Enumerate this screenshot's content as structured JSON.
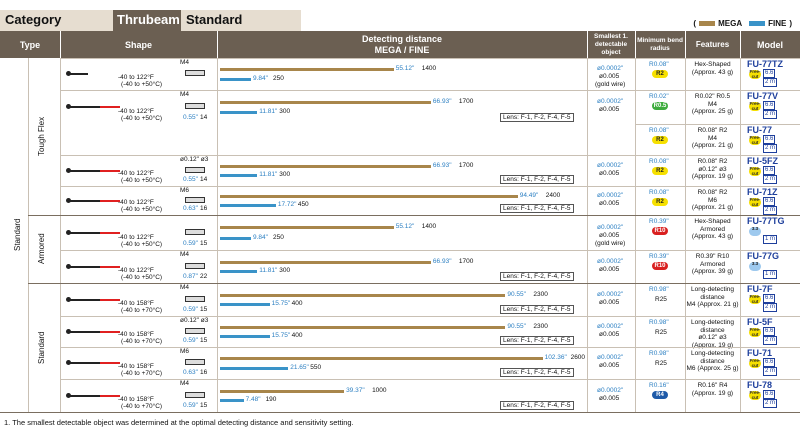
{
  "top": {
    "category": "Category",
    "thrubeam": "Thrubeam",
    "standard": "Standard"
  },
  "legend": {
    "mega": "MEGA",
    "fine": "FINE",
    "mega_color": "#a8864b",
    "fine_color": "#3a93c8",
    "open": "(",
    "close": ")"
  },
  "header": {
    "type": "Type",
    "shape": "Shape",
    "det1": "Detecting distance",
    "det2": "MEGA / FINE",
    "small": "Smallest 1. detectable object",
    "bend": "Minimum bend radius",
    "features": "Features",
    "model": "Model"
  },
  "groups": {
    "outer": "Standard",
    "toughflex": "Tough Flex",
    "armored": "Armored",
    "standard": "Standard"
  },
  "lens": "Lens: F-1, F-2, F-4, F-5",
  "rows": [
    {
      "temp1": "-40 to 122°F",
      "temp2": "(-40 to +50°C)",
      "thread": "M4",
      "dim": "",
      "dimv": "",
      "fine_in": "9.84\"",
      "fine_mm": "250",
      "mega_in": "55.12\"",
      "mega_mm": "1400",
      "small1": "ø0.0002\"",
      "small2": "ø0.005",
      "small3": "(gold wire)",
      "r_in": "R0.08\"",
      "r_mm": "R2",
      "pill": "R2",
      "feat": [
        "Hex-Shaped",
        "(Approx. 43 g)"
      ],
      "model": "FU-77TZ",
      "chip": "Free-cut",
      "len": "6.6",
      "len2": "2 m"
    },
    {
      "temp1": "-40 to 122°F",
      "temp2": "(-40 to +50°C)",
      "thread": "M4",
      "dim": "0.55\"",
      "dimv": "14",
      "fine_in": "11.81\"",
      "fine_mm": "300",
      "mega_in": "66.93\"",
      "mega_mm": "1700",
      "small1": "ø0.0002\"",
      "small2": "ø0.005",
      "small3": "",
      "r_in": "R0.02\"",
      "r_mm": "R0.5",
      "pill": "R0.5",
      "feat": [
        "R0.02\" R0.5",
        "M4",
        "(Approx. 25 g)"
      ],
      "model": "FU-77V",
      "chip": "Free-cut",
      "len": "6.6",
      "len2": "2 m"
    },
    {
      "temp1": "",
      "temp2": "",
      "thread": "",
      "dim": "",
      "dimv": "",
      "fine_in": "",
      "fine_mm": "",
      "mega_in": "",
      "mega_mm": "",
      "small1": "",
      "small2": "",
      "small3": "",
      "r_in": "R0.08\"",
      "r_mm": "R2",
      "pill": "R2",
      "feat": [
        "R0.08\" R2",
        "M4",
        "(Approx. 21 g)"
      ],
      "model": "FU-77",
      "chip": "Free-cut",
      "len": "6.6",
      "len2": "2 m"
    },
    {
      "temp1": "-40 to 122°F",
      "temp2": "(-40 to +50°C)",
      "thread": "ø0.12\" ø3",
      "dim": "0.55\"",
      "dimv": "14",
      "fine_in": "11.81\"",
      "fine_mm": "300",
      "mega_in": "66.93\"",
      "mega_mm": "1700",
      "small1": "ø0.0002\"",
      "small2": "ø0.005",
      "small3": "",
      "r_in": "R0.08\"",
      "r_mm": "R2",
      "pill": "R2",
      "feat": [
        "R0.08\" R2",
        "ø0.12\" ø3",
        "(Approx. 19 g)"
      ],
      "model": "FU-5FZ",
      "chip": "Free-cut",
      "len": "6.6",
      "len2": "2 m"
    },
    {
      "temp1": "-40 to 122°F",
      "temp2": "(-40 to +50°C)",
      "thread": "M6",
      "dim": "0.63\"",
      "dimv": "16",
      "fine_in": "17.72\"",
      "fine_mm": "450",
      "mega_in": "94.49\"",
      "mega_mm": "2400",
      "small1": "ø0.0002\"",
      "small2": "ø0.005",
      "small3": "",
      "r_in": "R0.08\"",
      "r_mm": "R2",
      "pill": "R2",
      "feat": [
        "R0.08\" R2",
        "M6",
        "(Approx. 21 g)"
      ],
      "model": "FU-71Z",
      "chip": "Free-cut",
      "len": "6.6",
      "len2": "2 m"
    },
    {
      "temp1": "-40 to 122°F",
      "temp2": "(-40 to +50°C)",
      "thread": "",
      "dim": "0.59\"",
      "dimv": "15",
      "fine_in": "9.84\"",
      "fine_mm": "250",
      "mega_in": "55.12\"",
      "mega_mm": "1400",
      "small1": "ø0.0002\"",
      "small2": "ø0.005",
      "small3": "(gold wire)",
      "r_in": "R0.39\"",
      "r_mm": "R10",
      "pill": "R10",
      "feat": [
        "Hex-Shaped",
        "Armored",
        "(Approx. 43 g)"
      ],
      "model": "FU-77TG",
      "chip": "3.3",
      "len": "",
      "len2": "1 m"
    },
    {
      "temp1": "-40 to 122°F",
      "temp2": "(-40 to +50°C)",
      "thread": "M4",
      "dim": "0.87\"",
      "dimv": "22",
      "fine_in": "11.81\"",
      "fine_mm": "300",
      "mega_in": "66.93\"",
      "mega_mm": "1700",
      "small1": "ø0.0002\"",
      "small2": "ø0.005",
      "small3": "",
      "r_in": "R0.39\"",
      "r_mm": "R10",
      "pill": "R10",
      "feat": [
        "R0.39\" R10",
        "Armored",
        "(Approx. 39 g)"
      ],
      "model": "FU-77G",
      "chip": "3.3",
      "len": "",
      "len2": "1 m"
    },
    {
      "temp1": "-40 to 158°F",
      "temp2": "(-40 to +70°C)",
      "thread": "M4",
      "dim": "0.59\"",
      "dimv": "15",
      "fine_in": "15.75\"",
      "fine_mm": "400",
      "mega_in": "90.55\"",
      "mega_mm": "2300",
      "small1": "ø0.0002\"",
      "small2": "ø0.005",
      "small3": "",
      "r_in": "R0.98\"",
      "r_mm": "R25",
      "pill": "",
      "feat": [
        "Long-detecting",
        "distance",
        "M4 (Approx. 21 g)"
      ],
      "model": "FU-7F",
      "chip": "Free-cut",
      "len": "6.6",
      "len2": "2 m"
    },
    {
      "temp1": "-40 to 158°F",
      "temp2": "(-40 to +70°C)",
      "thread": "ø0.12\" ø3",
      "dim": "0.59\"",
      "dimv": "15",
      "fine_in": "15.75\"",
      "fine_mm": "400",
      "mega_in": "90.55\"",
      "mega_mm": "2300",
      "small1": "ø0.0002\"",
      "small2": "ø0.005",
      "small3": "",
      "r_in": "R0.98\"",
      "r_mm": "R25",
      "pill": "",
      "feat": [
        "Long-detecting",
        "distance",
        "ø0.12\" ø3",
        "(Approx. 19 g)"
      ],
      "model": "FU-5F",
      "chip": "Free-cut",
      "len": "6.6",
      "len2": "2 m"
    },
    {
      "temp1": "-40 to 158°F",
      "temp2": "(-40 to +70°C)",
      "thread": "M6",
      "dim": "0.63\"",
      "dimv": "16",
      "fine_in": "21.65\"",
      "fine_mm": "550",
      "mega_in": "102.36\"",
      "mega_mm": "2600",
      "small1": "ø0.0002\"",
      "small2": "ø0.005",
      "small3": "",
      "r_in": "R0.98\"",
      "r_mm": "R25",
      "pill": "",
      "feat": [
        "Long-detecting",
        "distance",
        "M6 (Approx. 25 g)"
      ],
      "model": "FU-71",
      "chip": "Free-cut",
      "len": "6.6",
      "len2": "2 m"
    },
    {
      "temp1": "-40 to 158°F",
      "temp2": "(-40 to +70°C)",
      "thread": "M4",
      "dim": "0.59\"",
      "dimv": "15",
      "fine_in": "7.48\"",
      "fine_mm": "190",
      "mega_in": "39.37\"",
      "mega_mm": "1000",
      "small1": "ø0.0002\"",
      "small2": "ø0.005",
      "small3": "",
      "r_in": "R0.16\"",
      "r_mm": "R4",
      "pill": "R4",
      "feat": [
        "R0.16\" R4",
        "(Approx. 19 g)"
      ],
      "model": "FU-78",
      "chip": "Free-cut",
      "len": "6.6",
      "len2": "2 m"
    }
  ],
  "footnote": "1.  The smallest detectable object was determined at the optimal detecting distance and sensitivity setting."
}
